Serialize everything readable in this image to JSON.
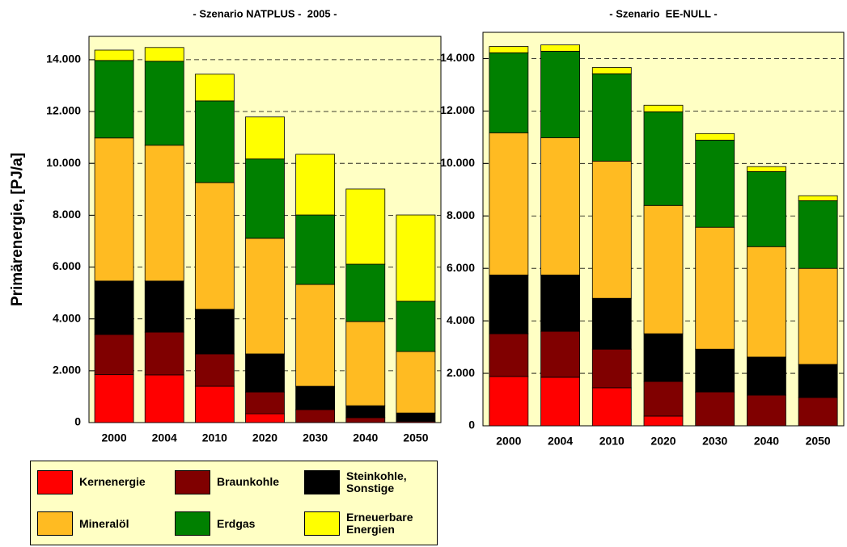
{
  "legend": [
    {
      "name": "Kernenergie",
      "color": "#ff0000"
    },
    {
      "name": "Braunkohle",
      "color": "#800000"
    },
    {
      "name": "Steinkohle, Sonstige",
      "color": "#000000"
    },
    {
      "name": "Mineralöl",
      "color": "#ffbb22"
    },
    {
      "name": "Erdgas",
      "color": "#008000"
    },
    {
      "name": "Erneuerbare Energien",
      "color": "#ffff00"
    }
  ],
  "chart_data": [
    {
      "type": "bar",
      "stacked": true,
      "title": "- Szenario NATPLUS -  2005 -",
      "y_label": "Primärenergie, [PJ/a]",
      "categories": [
        "2000",
        "2004",
        "2010",
        "2020",
        "2030",
        "2040",
        "2050"
      ],
      "series": [
        {
          "values": [
            1850,
            1840,
            1400,
            340,
            0,
            0,
            0
          ]
        },
        {
          "values": [
            1550,
            1650,
            1250,
            840,
            500,
            190,
            50
          ]
        },
        {
          "values": [
            2060,
            1970,
            1720,
            1470,
            900,
            460,
            320
          ]
        },
        {
          "values": [
            5520,
            5240,
            4890,
            4460,
            3930,
            3250,
            2370
          ]
        },
        {
          "values": [
            2990,
            3240,
            3150,
            3060,
            2680,
            2210,
            1940
          ]
        },
        {
          "values": [
            400,
            530,
            1030,
            1620,
            2340,
            2900,
            3330
          ]
        }
      ],
      "ylim": [
        0,
        14900
      ],
      "yticks": [
        0,
        {
          "value": 2000,
          "label": "2.000"
        },
        {
          "value": 4000,
          "label": "4.000"
        },
        {
          "value": 6000,
          "label": "6.000"
        },
        {
          "value": 8000,
          "label": "8.000"
        },
        {
          "value": 10000,
          "label": "10.000"
        },
        {
          "value": 12000,
          "label": "12.000"
        },
        {
          "value": 14000,
          "label": "14.000"
        }
      ],
      "grid": true
    },
    {
      "type": "bar",
      "stacked": true,
      "title": "- Szenario  EE-NULL -",
      "categories": [
        "2000",
        "2004",
        "2010",
        "2020",
        "2030",
        "2040",
        "2050"
      ],
      "series": [
        {
          "values": [
            1880,
            1850,
            1450,
            370,
            0,
            0,
            0
          ]
        },
        {
          "values": [
            1630,
            1750,
            1470,
            1320,
            1290,
            1170,
            1080
          ]
        },
        {
          "values": [
            2240,
            2150,
            1940,
            1820,
            1630,
            1450,
            1260
          ]
        },
        {
          "values": [
            5420,
            5230,
            5230,
            4890,
            4650,
            4210,
            3660
          ]
        },
        {
          "values": [
            3050,
            3300,
            3330,
            3570,
            3320,
            2860,
            2580
          ]
        },
        {
          "values": [
            240,
            240,
            240,
            250,
            250,
            190,
            190
          ]
        }
      ],
      "ylim": [
        0,
        15000
      ],
      "yticks": [
        0,
        {
          "value": 2000,
          "label": "2.000"
        },
        {
          "value": 4000,
          "label": "4.000"
        },
        {
          "value": 6000,
          "label": "6.000"
        },
        {
          "value": 8000,
          "label": "8.000"
        },
        {
          "value": 10000,
          "label": "10.000"
        },
        {
          "value": 12000,
          "label": "12.000"
        },
        {
          "value": 14000,
          "label": "14.000"
        }
      ],
      "grid": true
    }
  ]
}
